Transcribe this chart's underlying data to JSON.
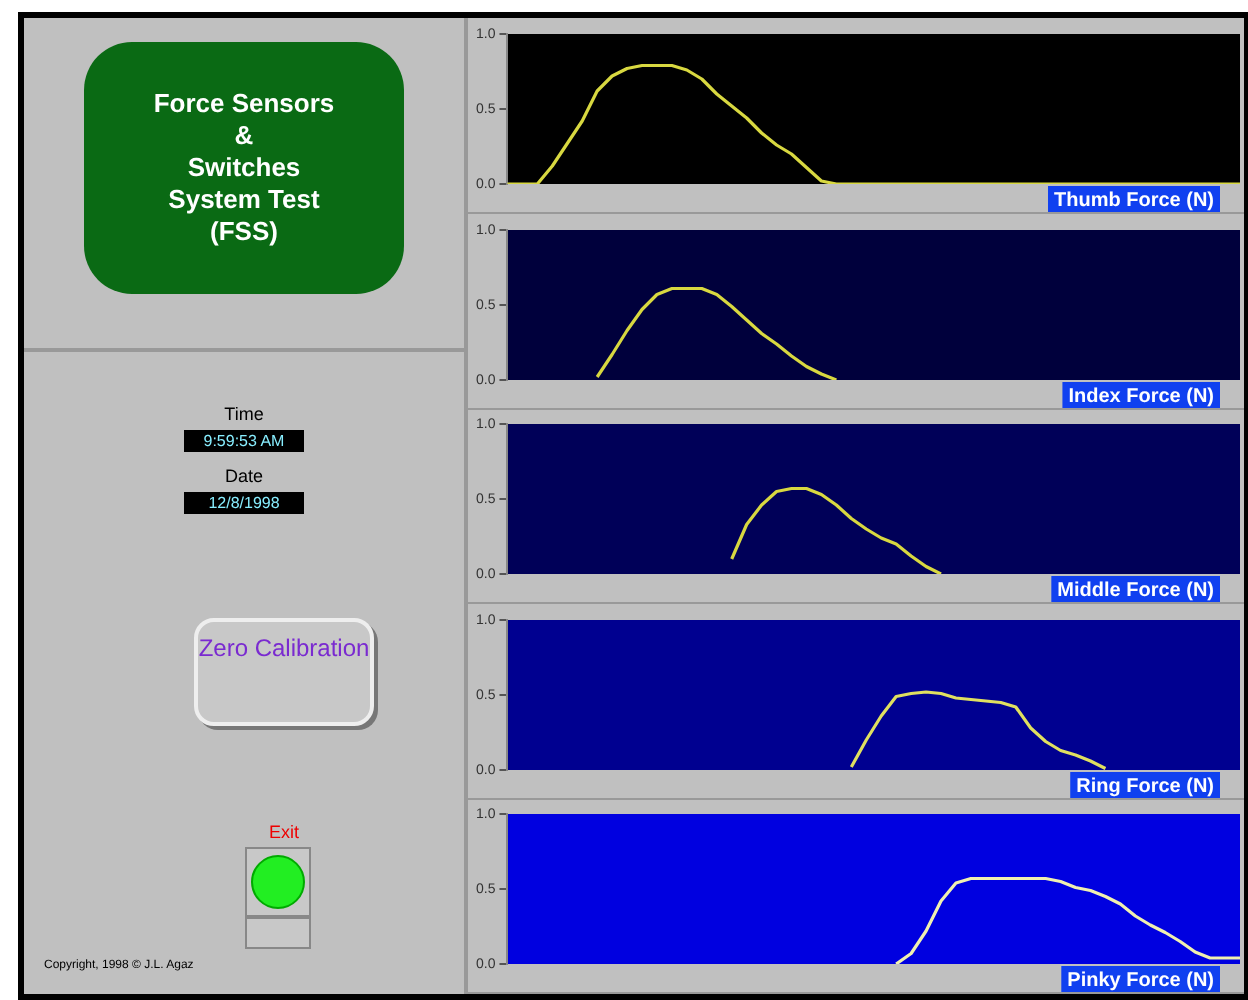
{
  "chart_data": [
    {
      "type": "other",
      "title": "Force Sensors\n&\nSwitches\nSystem Test\n(FSS)",
      "annotations": [
        "Time",
        "9:59:53 AM",
        "Date",
        "12/8/1998",
        "Zero Calibration",
        "Exit",
        "Copyright, 1998 © J.L. Agaz"
      ]
    },
    {
      "type": "line",
      "title": "Thumb Force (N)",
      "categories": [
        null,
        null,
        null,
        null,
        null,
        null,
        null,
        null,
        null,
        null,
        null,
        null,
        null,
        null,
        null,
        null,
        null,
        null,
        null,
        null,
        null,
        null,
        null,
        null,
        null,
        null,
        null,
        null,
        null,
        null,
        null,
        null,
        null,
        null,
        null,
        null,
        null,
        null,
        null,
        null,
        null,
        null,
        null,
        null,
        null,
        null,
        null,
        null,
        null,
        null
      ],
      "ylim": [
        0,
        1
      ],
      "yticks": [
        {
          "value": 0,
          "label": "0.0"
        },
        {
          "value": 0.5,
          "label": "0.5"
        },
        {
          "value": 1,
          "label": "1.0"
        }
      ],
      "tick_labels": "y",
      "grid": false,
      "legend": false,
      "series": [
        {
          "color": "#d8d840",
          "values": [
            0,
            0,
            0,
            0.12,
            0.27,
            0.42,
            0.62,
            0.72,
            0.77,
            0.79,
            0.79,
            0.79,
            0.76,
            0.7,
            0.6,
            0.52,
            0.44,
            0.34,
            0.26,
            0.2,
            0.11,
            0.02,
            0,
            0,
            0,
            0,
            0,
            0,
            0,
            0,
            0,
            0,
            0,
            0,
            0,
            0,
            0,
            0,
            0,
            0,
            0,
            0,
            0,
            0,
            0,
            0,
            0,
            0,
            0,
            0
          ]
        }
      ]
    },
    {
      "type": "line",
      "title": "Index Force (N)",
      "categories": [
        null,
        null,
        null,
        null,
        null,
        null,
        null,
        null,
        null,
        null,
        null,
        null,
        null,
        null,
        null,
        null,
        null,
        null,
        null,
        null,
        null,
        null,
        null,
        null,
        null,
        null,
        null,
        null,
        null,
        null,
        null,
        null,
        null,
        null,
        null,
        null,
        null,
        null,
        null,
        null,
        null,
        null,
        null,
        null,
        null,
        null,
        null,
        null,
        null,
        null
      ],
      "ylim": [
        0,
        1
      ],
      "yticks": [
        {
          "value": 0,
          "label": "0.0"
        },
        {
          "value": 0.5,
          "label": "0.5"
        },
        {
          "value": 1,
          "label": "1.0"
        }
      ],
      "tick_labels": "y",
      "grid": false,
      "legend": false,
      "series": [
        {
          "color": "#d8d840",
          "values": [
            null,
            null,
            null,
            null,
            null,
            null,
            0.02,
            0.17,
            0.33,
            0.47,
            0.57,
            0.61,
            0.61,
            0.61,
            0.57,
            0.49,
            0.4,
            0.31,
            0.24,
            0.16,
            0.09,
            0.04,
            0,
            null,
            null,
            null,
            null,
            null,
            null,
            null,
            null,
            null,
            null,
            null,
            null,
            null,
            null,
            null,
            null,
            null,
            null,
            null,
            null,
            null,
            null,
            null,
            null,
            null,
            null,
            null
          ]
        }
      ]
    },
    {
      "type": "line",
      "title": "Middle Force (N)",
      "categories": [
        null,
        null,
        null,
        null,
        null,
        null,
        null,
        null,
        null,
        null,
        null,
        null,
        null,
        null,
        null,
        null,
        null,
        null,
        null,
        null,
        null,
        null,
        null,
        null,
        null,
        null,
        null,
        null,
        null,
        null,
        null,
        null,
        null,
        null,
        null,
        null,
        null,
        null,
        null,
        null,
        null,
        null,
        null,
        null,
        null,
        null,
        null,
        null,
        null,
        null
      ],
      "ylim": [
        0,
        1
      ],
      "yticks": [
        {
          "value": 0,
          "label": "0.0"
        },
        {
          "value": 0.5,
          "label": "0.5"
        },
        {
          "value": 1,
          "label": "1.0"
        }
      ],
      "tick_labels": "y",
      "grid": false,
      "legend": false,
      "series": [
        {
          "color": "#d8d840",
          "values": [
            null,
            null,
            null,
            null,
            null,
            null,
            null,
            null,
            null,
            null,
            null,
            null,
            null,
            null,
            null,
            0.1,
            0.33,
            0.46,
            0.55,
            0.57,
            0.57,
            0.53,
            0.46,
            0.37,
            0.3,
            0.24,
            0.2,
            0.12,
            0.05,
            0,
            null,
            null,
            null,
            null,
            null,
            null,
            null,
            null,
            null,
            null,
            null,
            null,
            null,
            null,
            null,
            null,
            null,
            null,
            null,
            null
          ]
        }
      ]
    },
    {
      "type": "line",
      "title": "Ring Force (N)",
      "categories": [
        null,
        null,
        null,
        null,
        null,
        null,
        null,
        null,
        null,
        null,
        null,
        null,
        null,
        null,
        null,
        null,
        null,
        null,
        null,
        null,
        null,
        null,
        null,
        null,
        null,
        null,
        null,
        null,
        null,
        null,
        null,
        null,
        null,
        null,
        null,
        null,
        null,
        null,
        null,
        null,
        null,
        null,
        null,
        null,
        null,
        null,
        null,
        null,
        null,
        null
      ],
      "ylim": [
        0,
        1
      ],
      "yticks": [
        {
          "value": 0,
          "label": "0.0"
        },
        {
          "value": 0.5,
          "label": "0.5"
        },
        {
          "value": 1,
          "label": "1.0"
        }
      ],
      "tick_labels": "y",
      "grid": false,
      "legend": false,
      "series": [
        {
          "color": "#e0e060",
          "values": [
            null,
            null,
            null,
            null,
            null,
            null,
            null,
            null,
            null,
            null,
            null,
            null,
            null,
            null,
            null,
            null,
            null,
            null,
            null,
            null,
            null,
            null,
            null,
            0.02,
            0.2,
            0.36,
            0.49,
            0.51,
            0.52,
            0.51,
            0.48,
            0.47,
            0.46,
            0.45,
            0.42,
            0.28,
            0.19,
            0.13,
            0.1,
            0.06,
            0.01,
            null,
            null,
            null,
            null,
            null,
            null,
            null,
            null,
            null
          ]
        }
      ]
    },
    {
      "type": "line",
      "title": "Pinky Force (N)",
      "categories": [
        null,
        null,
        null,
        null,
        null,
        null,
        null,
        null,
        null,
        null,
        null,
        null,
        null,
        null,
        null,
        null,
        null,
        null,
        null,
        null,
        null,
        null,
        null,
        null,
        null,
        null,
        null,
        null,
        null,
        null,
        null,
        null,
        null,
        null,
        null,
        null,
        null,
        null,
        null,
        null,
        null,
        null,
        null,
        null,
        null,
        null,
        null,
        null,
        null,
        null
      ],
      "ylim": [
        0,
        1
      ],
      "yticks": [
        {
          "value": 0,
          "label": "0.0"
        },
        {
          "value": 0.5,
          "label": "0.5"
        },
        {
          "value": 1,
          "label": "1.0"
        }
      ],
      "tick_labels": "y",
      "grid": false,
      "legend": false,
      "series": [
        {
          "color": "#f0f0b0",
          "values": [
            null,
            null,
            null,
            null,
            null,
            null,
            null,
            null,
            null,
            null,
            null,
            null,
            null,
            null,
            null,
            null,
            null,
            null,
            null,
            null,
            null,
            null,
            null,
            null,
            null,
            null,
            0,
            0.07,
            0.22,
            0.42,
            0.54,
            0.57,
            0.57,
            0.57,
            0.57,
            0.57,
            0.57,
            0.55,
            0.51,
            0.49,
            0.45,
            0.4,
            0.32,
            0.26,
            0.21,
            0.15,
            0.08,
            0.04,
            0.04,
            0.04
          ]
        }
      ]
    }
  ]
}
